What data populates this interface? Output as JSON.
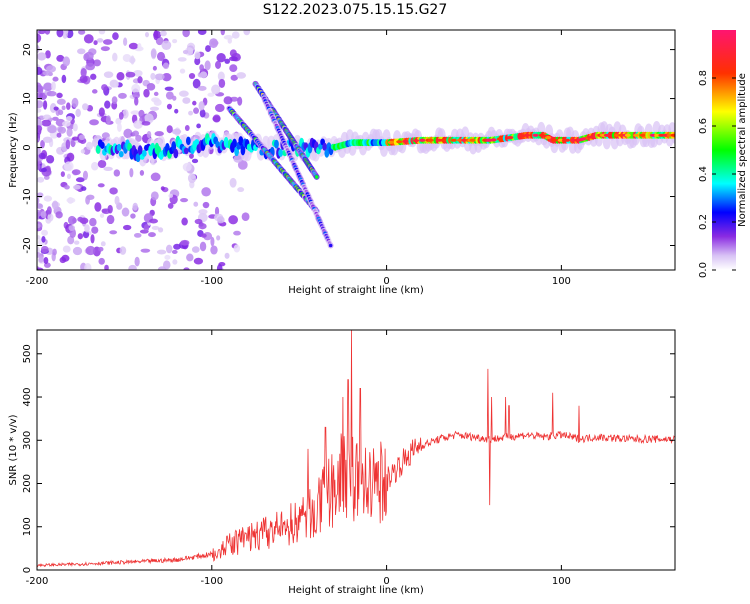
{
  "title": "S122.2023.075.15.15.G27",
  "chart_data": [
    {
      "type": "heatmap",
      "xlabel": "Height of straight line (km)",
      "ylabel": "Frequency (Hz)",
      "xlim": [
        -200,
        165
      ],
      "ylim": [
        -25,
        24
      ],
      "x_ticks": [
        -200,
        -100,
        0,
        100
      ],
      "y_ticks": [
        -20,
        -10,
        0,
        10,
        20
      ],
      "colorbar": {
        "label": "Normalized spectral amplitude",
        "range": [
          0,
          1
        ],
        "ticks": [
          "0.0",
          "0.2",
          "0.4",
          "0.6",
          "0.8"
        ],
        "colors": [
          "#ffffff",
          "#8a2be2",
          "#0000ff",
          "#00ffff",
          "#00ff00",
          "#ffff00",
          "#ff0000",
          "#ff1493"
        ]
      },
      "features": {
        "main_line": {
          "description_points": [
            [
              -160,
              0
            ],
            [
              -140,
              -1
            ],
            [
              -120,
              0
            ],
            [
              -100,
              1
            ],
            [
              -80,
              0
            ],
            [
              -60,
              0
            ],
            [
              -40,
              0
            ],
            [
              -30,
              0
            ],
            [
              -20,
              1
            ],
            [
              0,
              1
            ],
            [
              20,
              1.5
            ],
            [
              40,
              1.5
            ],
            [
              60,
              1.5
            ],
            [
              80,
              2.5
            ],
            [
              90,
              2.5
            ],
            [
              95,
              1.5
            ],
            [
              110,
              1.5
            ],
            [
              120,
              2.5
            ],
            [
              140,
              2.5
            ],
            [
              165,
              2.5
            ]
          ],
          "peak_amplitude": 0.95
        },
        "diagonal_streaks": [
          {
            "from": [
              -90,
              8
            ],
            "to": [
              -40,
              -13
            ],
            "amplitude": 0.6
          },
          {
            "from": [
              -75,
              13
            ],
            "to": [
              -40,
              -6
            ],
            "amplitude": 0.7
          },
          {
            "from": [
              -70,
              10
            ],
            "to": [
              -32,
              -20
            ],
            "amplitude": 0.3
          }
        ]
      }
    },
    {
      "type": "line",
      "xlabel": "Height of straight line (km)",
      "ylabel": "SNR (10 * v/v)",
      "xlim": [
        -200,
        165
      ],
      "ylim": [
        0,
        555
      ],
      "x_ticks": [
        -200,
        -100,
        0,
        100
      ],
      "y_ticks": [
        0,
        100,
        200,
        300,
        400,
        500
      ],
      "series": [
        {
          "color": "#ee3333",
          "x": [
            -200,
            -180,
            -160,
            -140,
            -120,
            -100,
            -90,
            -80,
            -70,
            -60,
            -50,
            -40,
            -35,
            -30,
            -25,
            -20,
            -15,
            -10,
            -5,
            0,
            10,
            20,
            30,
            40,
            50,
            60,
            70,
            80,
            90,
            100,
            110,
            120,
            140,
            165
          ],
          "values": [
            10,
            12,
            15,
            18,
            22,
            35,
            55,
            70,
            80,
            90,
            110,
            130,
            160,
            180,
            210,
            210,
            190,
            185,
            190,
            200,
            245,
            285,
            300,
            310,
            305,
            300,
            305,
            310,
            305,
            310,
            300,
            305,
            300,
            300
          ],
          "spikes": [
            [
              -20,
              555
            ],
            [
              -22,
              440
            ],
            [
              -35,
              330
            ],
            [
              -45,
              280
            ],
            [
              -25,
              400
            ],
            [
              -15,
              420
            ],
            [
              58,
              465
            ],
            [
              59,
              150
            ],
            [
              68,
              400
            ],
            [
              60,
              400
            ],
            [
              70,
              380
            ],
            [
              95,
              410
            ],
            [
              110,
              380
            ]
          ]
        }
      ]
    }
  ]
}
